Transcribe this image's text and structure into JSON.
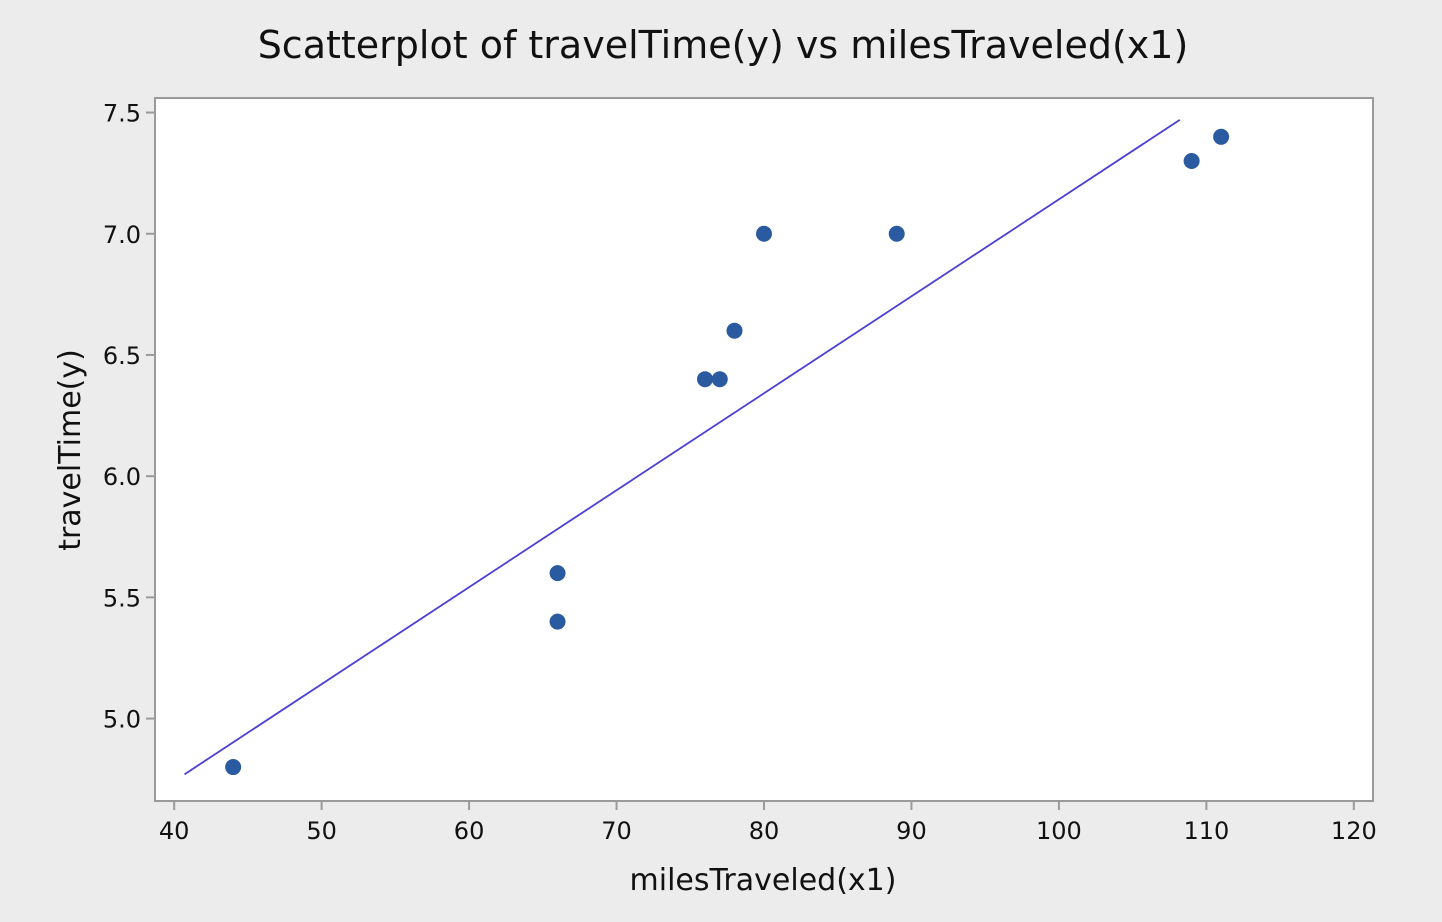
{
  "chart_data": {
    "type": "scatter",
    "title": "Scatterplot of travelTime(y) vs milesTraveled(x1)",
    "xlabel": "milesTraveled(x1)",
    "ylabel": "travelTime(y)",
    "xlim": [
      38.7,
      121.3
    ],
    "ylim": [
      4.66,
      7.56
    ],
    "xticks": [
      40,
      50,
      60,
      70,
      80,
      90,
      100,
      110,
      120
    ],
    "xtick_labels": [
      "40",
      "50",
      "60",
      "70",
      "80",
      "90",
      "100",
      "110",
      "120"
    ],
    "yticks": [
      5.0,
      5.5,
      6.0,
      6.5,
      7.0,
      7.5
    ],
    "ytick_labels": [
      "5.0",
      "5.5",
      "6.0",
      "6.5",
      "7.0",
      "7.5"
    ],
    "grid": false,
    "legend": "none",
    "points": [
      {
        "x": 44,
        "y": 4.8
      },
      {
        "x": 66,
        "y": 5.6
      },
      {
        "x": 66,
        "y": 5.4
      },
      {
        "x": 76,
        "y": 6.4
      },
      {
        "x": 77,
        "y": 6.4
      },
      {
        "x": 78,
        "y": 6.6
      },
      {
        "x": 80,
        "y": 7.0
      },
      {
        "x": 89,
        "y": 7.0
      },
      {
        "x": 109,
        "y": 7.3
      },
      {
        "x": 111,
        "y": 7.4
      }
    ],
    "fit_line": {
      "x1": 40.7,
      "y1": 4.77,
      "x2": 108.2,
      "y2": 7.47
    },
    "colors": {
      "points": "#2a5aa0",
      "fit_line": "#4b3fd6",
      "frame": "#9a9a9a",
      "plot_bg": "#ffffff",
      "page_bg": "#ececec"
    }
  }
}
